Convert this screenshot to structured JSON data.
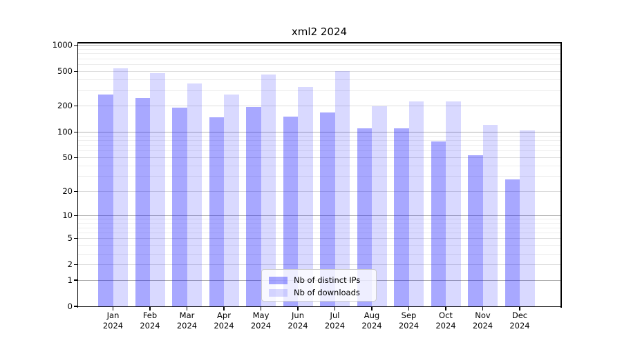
{
  "chart_data": {
    "type": "bar",
    "title": "xml2 2024",
    "yscale": "log1p",
    "grid": true,
    "legend_position": "lower center",
    "categories": [
      "Jan",
      "Feb",
      "Mar",
      "Apr",
      "May",
      "Jun",
      "Jul",
      "Aug",
      "Sep",
      "Oct",
      "Nov",
      "Dec"
    ],
    "category_year": "2024",
    "series": [
      {
        "name": "Nb of distinct IPs",
        "slug": "distinct-ips",
        "color": "rgba(0,0,255,0.34)",
        "values": [
          270,
          248,
          190,
          148,
          196,
          152,
          170,
          111,
          111,
          78,
          54,
          28
        ]
      },
      {
        "name": "Nb of downloads",
        "slug": "downloads",
        "color": "rgba(0,0,255,0.15)",
        "values": [
          540,
          480,
          365,
          272,
          463,
          333,
          505,
          200,
          225,
          225,
          120,
          105
        ]
      }
    ],
    "y_ticks": [
      0,
      1,
      2,
      5,
      10,
      20,
      50,
      100,
      200,
      500,
      1000
    ],
    "ylim": [
      0,
      1090
    ],
    "gridlines": {
      "major": [
        1,
        10,
        100,
        1000
      ],
      "mid": [
        2,
        5,
        20,
        50,
        200,
        500
      ],
      "minor": [
        3,
        4,
        6,
        7,
        8,
        9,
        30,
        40,
        60,
        70,
        80,
        90,
        300,
        400,
        600,
        700,
        800,
        900
      ]
    },
    "colors": {
      "grid_major": "#b0b0b0",
      "grid_mid": "#dcdcdc",
      "grid_minor": "#ededed",
      "axis": "#000000",
      "legend_border": "#cccccc",
      "legend_bg": "rgba(255,255,255,0.8)"
    }
  }
}
